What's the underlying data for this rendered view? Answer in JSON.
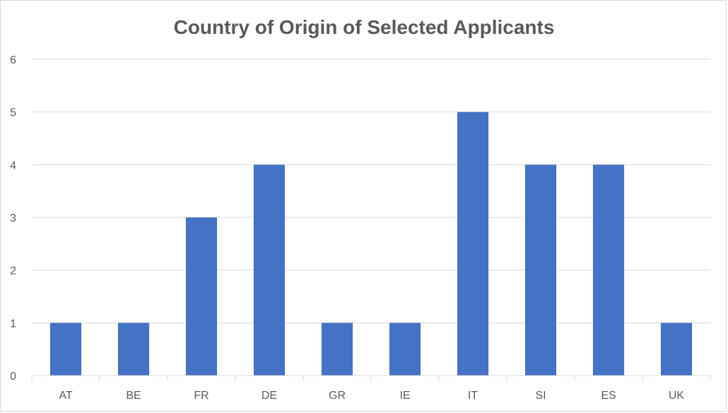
{
  "chart_data": {
    "type": "bar",
    "title": "Country of Origin of Selected Applicants",
    "xlabel": "",
    "ylabel": "",
    "categories": [
      "AT",
      "BE",
      "FR",
      "DE",
      "GR",
      "IE",
      "IT",
      "SI",
      "ES",
      "UK"
    ],
    "values": [
      1,
      1,
      3,
      4,
      1,
      1,
      5,
      4,
      4,
      1
    ],
    "ylim": [
      0,
      6
    ],
    "yticks": [
      0,
      1,
      2,
      3,
      4,
      5,
      6
    ],
    "grid": true,
    "legend": "none",
    "colors": {
      "bar": "#4472C4",
      "grid": "#D9D9D9",
      "text": "#595959"
    }
  }
}
